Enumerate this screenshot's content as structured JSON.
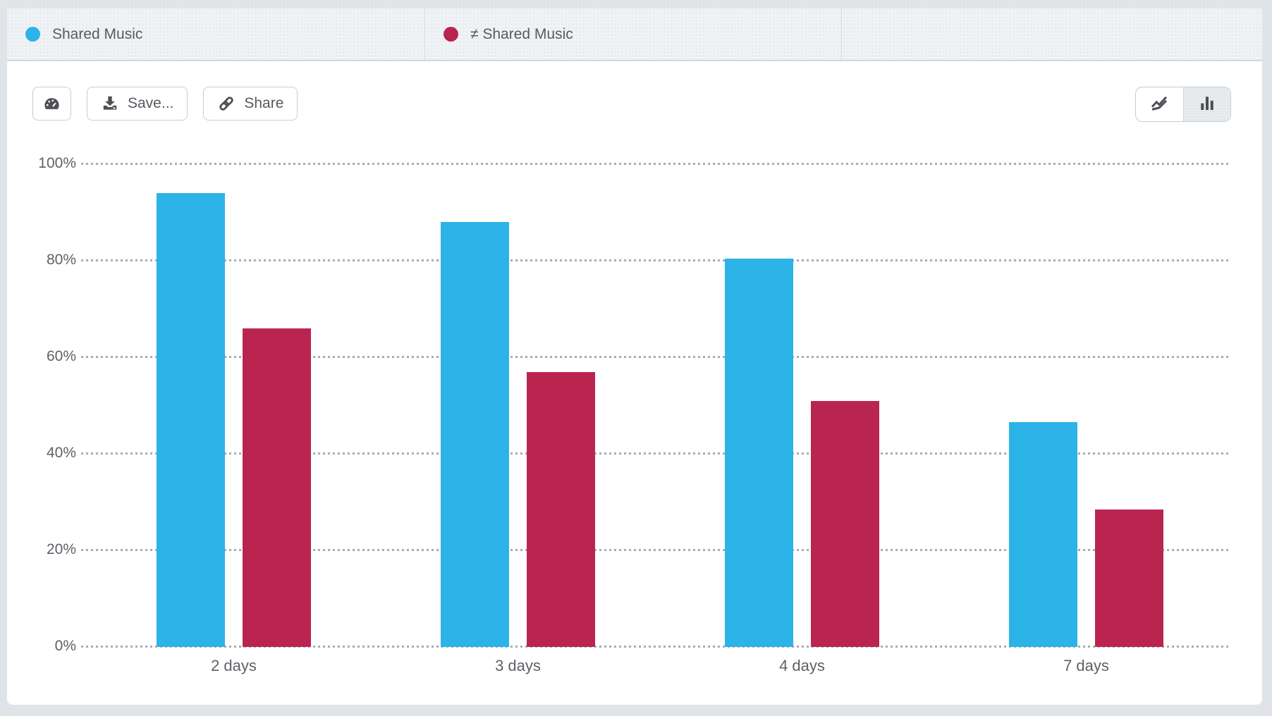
{
  "window": {
    "background": "#e0e4e8"
  },
  "legend": {
    "items": [
      {
        "label": "Shared Music",
        "color": "#2cb3e8"
      },
      {
        "label": "≠ Shared Music",
        "color": "#ba2550"
      }
    ]
  },
  "toolbar": {
    "save_label": "Save...",
    "share_label": "Share",
    "view_toggle": {
      "options": [
        "line",
        "bar"
      ],
      "selected": "bar"
    }
  },
  "chart_data": {
    "type": "bar",
    "categories": [
      "2 days",
      "3 days",
      "4 days",
      "7 days"
    ],
    "series": [
      {
        "name": "Shared Music",
        "color": "#2cb3e8",
        "values": [
          94,
          88,
          80.5,
          46.5
        ]
      },
      {
        "name": "≠ Shared Music",
        "color": "#ba2550",
        "values": [
          66,
          57,
          51,
          28.5
        ]
      }
    ],
    "title": "",
    "xlabel": "",
    "ylabel": "",
    "ylim": [
      0,
      100
    ],
    "yticks": [
      {
        "label": "100%",
        "value": 100
      },
      {
        "label": "80%",
        "value": 80
      },
      {
        "label": "60%",
        "value": 60
      },
      {
        "label": "40%",
        "value": 40
      },
      {
        "label": "20%",
        "value": 20
      },
      {
        "label": "0%",
        "value": 0
      }
    ],
    "grid": "dotted-horizontal",
    "legend_position": "top"
  }
}
